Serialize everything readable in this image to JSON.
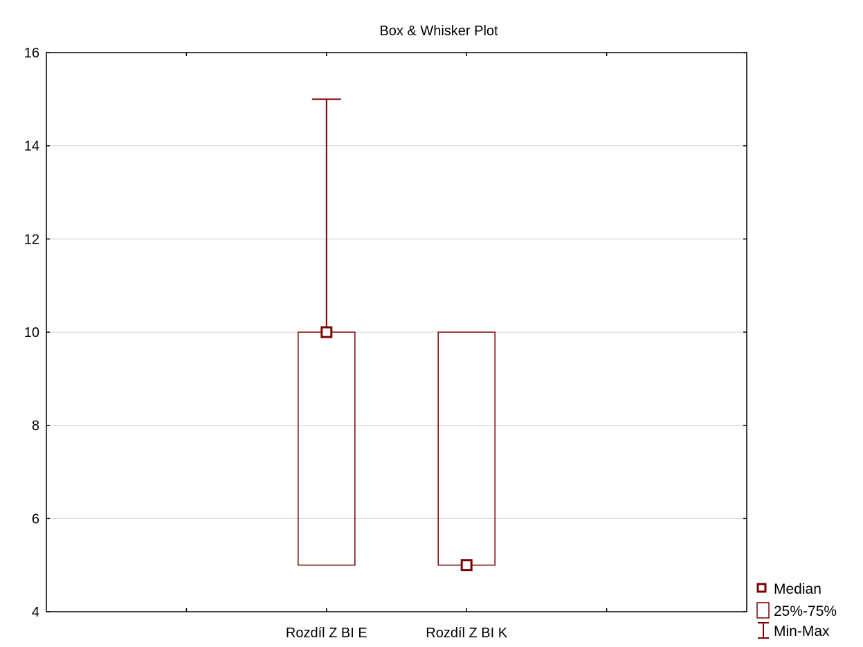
{
  "chart_data": {
    "type": "box",
    "title": "Box & Whisker Plot",
    "xlabel": "",
    "ylabel": "",
    "ylim": [
      4,
      16
    ],
    "yticks": [
      4,
      6,
      8,
      10,
      12,
      14,
      16
    ],
    "grid": true,
    "legend_position": "bottom-right",
    "categories": [
      "Rozdíl Z BI E",
      "Rozdíl Z BI K"
    ],
    "boxes": [
      {
        "category": "Rozdíl Z BI E",
        "median": 10,
        "q1": 5,
        "q3": 10,
        "min": 5,
        "max": 15
      },
      {
        "category": "Rozdíl Z BI K",
        "median": 5,
        "q1": 5,
        "q3": 10,
        "min": 5,
        "max": 10
      }
    ],
    "legend": {
      "median": "Median",
      "box": "25%-75%",
      "whisker": "Min-Max"
    },
    "colors": {
      "series": "#7a0000",
      "grid": "#d0d0d0",
      "frame": "#000000"
    }
  }
}
